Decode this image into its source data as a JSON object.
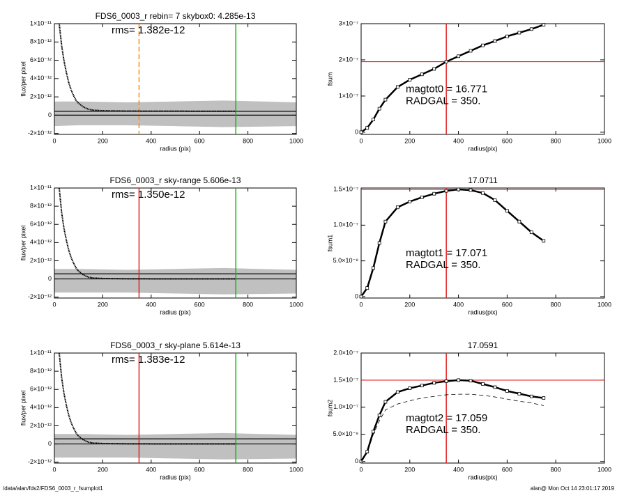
{
  "chart_data": [
    {
      "type": "scatter",
      "title": "FDS6_0003_r rebin= 7    skybox0:  4.285e-13",
      "texts": [
        "rms= 1.382e-12"
      ],
      "xlabel": "radius (pix)",
      "ylabel": "flux/per pixel",
      "xlim": [
        0,
        1000
      ],
      "xticks": [
        0,
        200,
        400,
        600,
        800,
        1000
      ],
      "ylim": [
        -2.1e-12,
        1e-11
      ],
      "yticks": [
        {
          "value": 1e-11,
          "label": "1×10⁻¹¹"
        },
        {
          "value": 8e-12,
          "label": "8×10⁻¹²"
        },
        {
          "value": 6e-12,
          "label": "6×10⁻¹²"
        },
        {
          "value": 4e-12,
          "label": "4×10⁻¹²"
        },
        {
          "value": 2e-12,
          "label": "2×10⁻¹²"
        },
        0,
        {
          "value": -2e-12,
          "label": "-2×10⁻¹²"
        }
      ],
      "band": {
        "color": "#b0b0b0",
        "x": [
          0,
          100,
          300,
          500,
          700,
          1000
        ],
        "low": [
          -1.2e-12,
          -1.1e-12,
          -1.1e-12,
          -1.2e-12,
          -1.3e-12,
          -1.2e-12
        ],
        "high": [
          1.5e-12,
          1.5e-12,
          1.4e-12,
          1.5e-12,
          1.6e-12,
          1.4e-12
        ]
      },
      "x": [
        20,
        30,
        40,
        50,
        60,
        70,
        80,
        90,
        100,
        120,
        140,
        160,
        200,
        300,
        400,
        500,
        600,
        700,
        750
      ],
      "series": [
        {
          "color": "#000000",
          "values": [
            1e-11,
            7.6e-12,
            5.9e-12,
            4.6e-12,
            3.5e-12,
            2.7e-12,
            2.1e-12,
            1.6e-12,
            1.3e-12,
            9e-13,
            6.5e-13,
            5.5e-13,
            4.8e-13,
            4.5e-13,
            4.4e-13,
            4.4e-13,
            4.3e-13,
            4.3e-13,
            4.3e-13
          ]
        }
      ],
      "hlines": [
        {
          "y": 0,
          "color": "#000000"
        },
        {
          "y": 4.285e-13,
          "color": "#000000"
        }
      ],
      "vlines": [
        {
          "x": 350,
          "color": "#ff8c00",
          "dash": true
        },
        {
          "x": 750,
          "color": "#00c000"
        }
      ]
    },
    {
      "type": "line",
      "texts": [
        "magtot0 = 16.771",
        "RADGAL =    350."
      ],
      "xlabel": "radius(pix)",
      "ylabel": "fsum",
      "xlim": [
        0,
        1000
      ],
      "xticks": [
        0,
        200,
        400,
        600,
        800,
        1000
      ],
      "ylim": [
        -6e-09,
        3e-07
      ],
      "yticks": [
        0,
        {
          "value": 1e-07,
          "label": "1×10⁻⁷"
        },
        {
          "value": 2e-07,
          "label": "2×10⁻⁷"
        },
        {
          "value": 3e-07,
          "label": "3×10⁻⁷"
        }
      ],
      "x": [
        0,
        25,
        50,
        75,
        100,
        150,
        200,
        250,
        300,
        350,
        400,
        450,
        500,
        550,
        600,
        650,
        700,
        750
      ],
      "series": [
        {
          "color": "#000000",
          "marker": "square",
          "values": [
            0,
            1.2e-08,
            3.5e-08,
            6.5e-08,
            9e-08,
            1.25e-07,
            1.45e-07,
            1.6e-07,
            1.75e-07,
            1.95e-07,
            2.1e-07,
            2.25e-07,
            2.4e-07,
            2.52e-07,
            2.65e-07,
            2.75e-07,
            2.85e-07,
            2.97e-07
          ]
        }
      ],
      "hlines": [
        {
          "y": 1.95e-07,
          "color": "#e02020"
        }
      ],
      "vlines": [
        {
          "x": 350,
          "color": "#e02020"
        }
      ]
    },
    {
      "type": "scatter",
      "title": "FDS6_0003_r sky-range  5.606e-13",
      "texts": [
        "rms= 1.350e-12"
      ],
      "xlabel": "radius (pix)",
      "ylabel": "flux/per pixel",
      "xlim": [
        0,
        1000
      ],
      "xticks": [
        0,
        200,
        400,
        600,
        800,
        1000
      ],
      "ylim": [
        -2.1e-12,
        1e-11
      ],
      "yticks": [
        {
          "value": 1e-11,
          "label": "1×10⁻¹¹"
        },
        {
          "value": 8e-12,
          "label": "8×10⁻¹²"
        },
        {
          "value": 6e-12,
          "label": "6×10⁻¹²"
        },
        {
          "value": 4e-12,
          "label": "4×10⁻¹²"
        },
        {
          "value": 2e-12,
          "label": "2×10⁻¹²"
        },
        0,
        {
          "value": -2e-12,
          "label": "-2×10⁻¹²"
        }
      ],
      "band": {
        "color": "#b0b0b0",
        "x": [
          0,
          100,
          300,
          500,
          700,
          1000
        ],
        "low": [
          -1.5e-12,
          -1.5e-12,
          -1.5e-12,
          -1.6e-12,
          -1.7e-12,
          -1.6e-12
        ],
        "high": [
          1.1e-12,
          1.1e-12,
          1e-12,
          1.1e-12,
          1.2e-12,
          1e-12
        ]
      },
      "x": [
        20,
        30,
        40,
        50,
        60,
        70,
        80,
        90,
        100,
        120,
        140,
        160,
        200,
        300,
        400,
        500,
        600,
        700,
        750
      ],
      "series": [
        {
          "color": "#000000",
          "values": [
            1e-11,
            7.3e-12,
            5.5e-12,
            4.2e-12,
            3.1e-12,
            2.3e-12,
            1.7e-12,
            1.2e-12,
            8.5e-13,
            4.5e-13,
            2e-13,
            1e-13,
            5e-14,
            2e-14,
            1e-14,
            1e-14,
            1e-14,
            1e-14,
            1e-14
          ]
        }
      ],
      "hlines": [
        {
          "y": 0,
          "color": "#000000"
        },
        {
          "y": 5.606e-13,
          "color": "#000000"
        }
      ],
      "vlines": [
        {
          "x": 350,
          "color": "#e02020"
        },
        {
          "x": 750,
          "color": "#00c000"
        }
      ]
    },
    {
      "type": "line",
      "title": "17.0711",
      "texts": [
        "magtot1 = 17.071",
        "RADGAL =    350."
      ],
      "xlabel": "radius(pix)",
      "ylabel": "fsum1",
      "xlim": [
        0,
        1000
      ],
      "xticks": [
        0,
        200,
        400,
        600,
        800,
        1000
      ],
      "ylim": [
        -2e-09,
        1.52e-07
      ],
      "yticks": [
        0,
        {
          "value": 5e-08,
          "label": "5.0×10⁻⁸"
        },
        {
          "value": 1e-07,
          "label": "1.0×10⁻⁷"
        },
        {
          "value": 1.5e-07,
          "label": "1.5×10⁻⁷"
        }
      ],
      "x": [
        0,
        25,
        50,
        75,
        100,
        150,
        200,
        250,
        300,
        350,
        400,
        450,
        500,
        550,
        600,
        650,
        700,
        750
      ],
      "series": [
        {
          "color": "#000000",
          "marker": "square",
          "values": [
            0,
            1.2e-08,
            4e-08,
            7.5e-08,
            1.05e-07,
            1.25e-07,
            1.33e-07,
            1.39e-07,
            1.44e-07,
            1.48e-07,
            1.5e-07,
            1.49e-07,
            1.45e-07,
            1.35e-07,
            1.2e-07,
            1.05e-07,
            9e-08,
            7.8e-08
          ]
        }
      ],
      "hlines": [
        {
          "y": 1.5e-07,
          "color": "#e02020"
        }
      ],
      "vlines": [
        {
          "x": 350,
          "color": "#e02020"
        }
      ]
    },
    {
      "type": "scatter",
      "title": "FDS6_0003_r sky-plane  5.614e-13",
      "texts": [
        "rms= 1.383e-12"
      ],
      "xlabel": "radius (pix)",
      "ylabel": "flux/per pixel",
      "xlim": [
        0,
        1000
      ],
      "xticks": [
        0,
        200,
        400,
        600,
        800,
        1000
      ],
      "ylim": [
        -2.1e-12,
        1e-11
      ],
      "yticks": [
        {
          "value": 1e-11,
          "label": "1×10⁻¹¹"
        },
        {
          "value": 8e-12,
          "label": "8×10⁻¹²"
        },
        {
          "value": 6e-12,
          "label": "6×10⁻¹²"
        },
        {
          "value": 4e-12,
          "label": "4×10⁻¹²"
        },
        {
          "value": 2e-12,
          "label": "2×10⁻¹²"
        },
        0,
        {
          "value": -2e-12,
          "label": "-2×10⁻¹²"
        }
      ],
      "band": {
        "color": "#b0b0b0",
        "x": [
          0,
          100,
          300,
          500,
          700,
          1000
        ],
        "low": [
          -1.5e-12,
          -1.5e-12,
          -1.5e-12,
          -1.6e-12,
          -1.7e-12,
          -1.6e-12
        ],
        "high": [
          1.1e-12,
          1.1e-12,
          1e-12,
          1.1e-12,
          1.2e-12,
          1e-12
        ]
      },
      "x": [
        20,
        30,
        40,
        50,
        60,
        70,
        80,
        90,
        100,
        120,
        140,
        160,
        200,
        300,
        400,
        500,
        600,
        700,
        750
      ],
      "series": [
        {
          "color": "#000000",
          "values": [
            1e-11,
            7.3e-12,
            5.5e-12,
            4.2e-12,
            3.1e-12,
            2.3e-12,
            1.7e-12,
            1.2e-12,
            8.5e-13,
            4.5e-13,
            2e-13,
            1e-13,
            5e-14,
            2e-14,
            1e-14,
            1e-14,
            1e-14,
            1e-14,
            1e-14
          ]
        }
      ],
      "hlines": [
        {
          "y": 0,
          "color": "#000000"
        },
        {
          "y": 5.614e-13,
          "color": "#000000"
        }
      ],
      "vlines": [
        {
          "x": 350,
          "color": "#e02020"
        },
        {
          "x": 750,
          "color": "#00c000"
        }
      ]
    },
    {
      "type": "line",
      "title": "17.0591",
      "texts": [
        "magtot2 = 17.059",
        "RADGAL =    350."
      ],
      "xlabel": "radius(pix)",
      "ylabel": "fsum2",
      "xlim": [
        0,
        1000
      ],
      "xticks": [
        0,
        200,
        400,
        600,
        800,
        1000
      ],
      "ylim": [
        -3e-09,
        2e-07
      ],
      "yticks": [
        0,
        {
          "value": 5e-08,
          "label": "5.0×10⁻⁸"
        },
        {
          "value": 1e-07,
          "label": "1.0×10⁻⁷"
        },
        {
          "value": 1.5e-07,
          "label": "1.5×10⁻⁷"
        },
        {
          "value": 2e-07,
          "label": "2.0×10⁻⁷"
        }
      ],
      "x": [
        0,
        25,
        50,
        75,
        100,
        150,
        200,
        250,
        300,
        350,
        400,
        450,
        500,
        550,
        600,
        650,
        700,
        750
      ],
      "series": [
        {
          "color": "#000000",
          "marker": "square",
          "values": [
            0,
            1.8e-08,
            5.5e-08,
            8.5e-08,
            1.1e-07,
            1.28e-07,
            1.35e-07,
            1.4e-07,
            1.45e-07,
            1.48e-07,
            1.5e-07,
            1.49e-07,
            1.43e-07,
            1.37e-07,
            1.3e-07,
            1.25e-07,
            1.2e-07,
            1.17e-07
          ]
        },
        {
          "color": "#000000",
          "dash": true,
          "values": [
            0,
            1.6e-08,
            5e-08,
            7.5e-08,
            9.5e-08,
            1.06e-07,
            1.12e-07,
            1.17e-07,
            1.2e-07,
            1.23e-07,
            1.24e-07,
            1.24e-07,
            1.22e-07,
            1.19e-07,
            1.15e-07,
            1.11e-07,
            1.08e-07,
            1.03e-07
          ]
        }
      ],
      "hlines": [
        {
          "y": 1.5e-07,
          "color": "#e02020"
        }
      ],
      "vlines": [
        {
          "x": 350,
          "color": "#e02020"
        }
      ]
    }
  ],
  "footer": {
    "left": "/data/alan/fds2/FDS6_0003_r_fsumplot1",
    "right": "alan@  Mon Oct 14 23:01:17 2019"
  }
}
